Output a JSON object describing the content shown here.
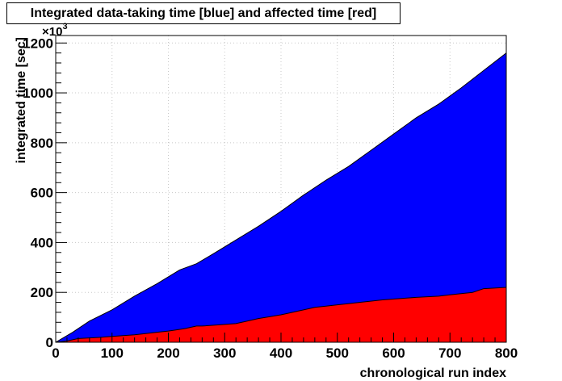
{
  "chart_data": {
    "type": "area",
    "title": "Integrated data-taking time [blue] and affected time [red]",
    "xlabel": "chronological run index",
    "ylabel": "integrated time [sec]",
    "y_multiplier": "×10",
    "y_multiplier_exp": "3",
    "xlim": [
      0,
      800
    ],
    "ylim": [
      0,
      1230
    ],
    "x_ticks": [
      0,
      100,
      200,
      300,
      400,
      500,
      600,
      700,
      800
    ],
    "y_ticks": [
      0,
      200,
      400,
      600,
      800,
      1000,
      1200
    ],
    "grid": true,
    "series": [
      {
        "color": "#0000ff",
        "x": [
          0,
          30,
          60,
          100,
          140,
          180,
          220,
          250,
          280,
          320,
          360,
          400,
          440,
          480,
          520,
          560,
          600,
          640,
          680,
          720,
          760,
          800
        ],
        "values": [
          0,
          40,
          85,
          130,
          185,
          235,
          290,
          315,
          355,
          410,
          465,
          525,
          590,
          650,
          705,
          770,
          835,
          900,
          955,
          1020,
          1090,
          1160
        ]
      },
      {
        "color": "#ff0000",
        "x": [
          0,
          20,
          40,
          80,
          140,
          180,
          200,
          230,
          250,
          260,
          320,
          340,
          360,
          400,
          440,
          460,
          480,
          500,
          520,
          580,
          640,
          680,
          700,
          740,
          760,
          800
        ],
        "values": [
          0,
          5,
          15,
          20,
          30,
          40,
          45,
          55,
          65,
          65,
          75,
          85,
          95,
          110,
          130,
          140,
          145,
          150,
          155,
          170,
          180,
          185,
          190,
          200,
          215,
          220
        ]
      }
    ]
  }
}
